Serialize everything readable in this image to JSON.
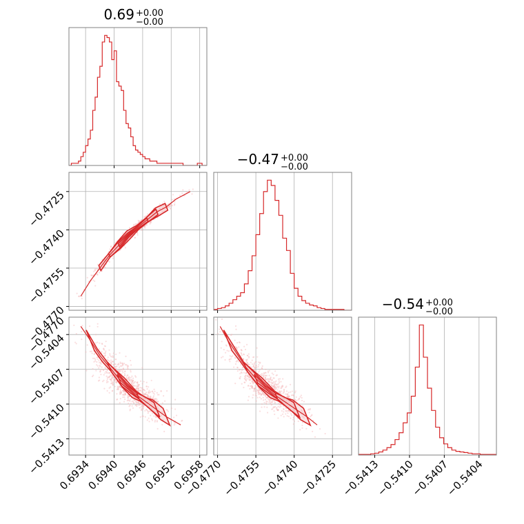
{
  "chart_data": [
    {
      "type": "histogram",
      "panel": "p0_0",
      "title": "0.69",
      "title_err_up": "+0.00",
      "title_err_down": "−0.00",
      "xlim": [
        0.69305,
        0.69595
      ],
      "xticks": [
        0.6934,
        0.694,
        0.6946,
        0.6952,
        0.6958
      ],
      "xtick_labels": [],
      "bins": [
        0.69305,
        0.6931,
        0.69315,
        0.6932,
        0.69325,
        0.6933,
        0.69335,
        0.6934,
        0.69345,
        0.6935,
        0.69355,
        0.6936,
        0.69365,
        0.6937,
        0.69375,
        0.6938,
        0.69385,
        0.6939,
        0.69395,
        0.694,
        0.69405,
        0.6941,
        0.69415,
        0.6942,
        0.69425,
        0.6943,
        0.69435,
        0.6944,
        0.69445,
        0.6945,
        0.69455,
        0.6946,
        0.69465,
        0.6947,
        0.69475,
        0.6948,
        0.69485,
        0.6949,
        0.69495,
        0.695,
        0.69505,
        0.6951,
        0.69515,
        0.6952,
        0.69525,
        0.6953,
        0.69535,
        0.6954,
        0.69545,
        0.6955,
        0.69555,
        0.6956,
        0.69565,
        0.6957,
        0.69575,
        0.6958,
        0.69585,
        0.6959,
        0.69595
      ],
      "counts": [
        0,
        1,
        1,
        1,
        2,
        4,
        6,
        9,
        12,
        16,
        25,
        31,
        40,
        45,
        56,
        59,
        58,
        56,
        48,
        52,
        38,
        36,
        34,
        25,
        19,
        17,
        13,
        9,
        7,
        6,
        5,
        4,
        3,
        3,
        2,
        2,
        2,
        1,
        1,
        1,
        1,
        1,
        1,
        1,
        1,
        1,
        1,
        1,
        0,
        0,
        0,
        0,
        0,
        0,
        1,
        1,
        0,
        0
      ]
    },
    {
      "type": "histogram",
      "panel": "p1_1",
      "title": "−0.47",
      "title_err_up": "+0.00",
      "title_err_down": "−0.00",
      "xlim": [
        -0.47715,
        -0.47175
      ],
      "xticks": [
        -0.477,
        -0.4755,
        -0.474,
        -0.4725
      ],
      "xtick_labels": [],
      "bins": [
        -0.47715,
        -0.477,
        -0.47685,
        -0.4767,
        -0.47655,
        -0.4764,
        -0.47625,
        -0.4761,
        -0.47595,
        -0.4758,
        -0.47565,
        -0.4755,
        -0.47535,
        -0.4752,
        -0.47505,
        -0.4749,
        -0.47475,
        -0.4746,
        -0.47445,
        -0.4743,
        -0.47415,
        -0.474,
        -0.47385,
        -0.4737,
        -0.47355,
        -0.4734,
        -0.47325,
        -0.4731,
        -0.47295,
        -0.4728,
        -0.47265,
        -0.4725,
        -0.47235,
        -0.4722,
        -0.47205,
        -0.4719,
        -0.47175
      ],
      "counts": [
        1,
        2,
        3,
        5,
        8,
        12,
        16,
        20,
        30,
        45,
        62,
        86,
        110,
        135,
        148,
        142,
        125,
        108,
        82,
        68,
        42,
        25,
        16,
        11,
        8,
        6,
        5,
        3,
        2,
        1,
        1,
        1,
        1,
        1,
        0,
        0
      ]
    },
    {
      "type": "histogram",
      "panel": "p2_2",
      "title": "−0.54",
      "title_err_up": "+0.00",
      "title_err_down": "−0.00",
      "xlim": [
        -0.54144,
        -0.54025
      ],
      "xticks": [
        -0.5413,
        -0.541,
        -0.5407,
        -0.5404
      ],
      "xtick_labels": [
        "−0.5413",
        "−0.5410",
        "−0.5407",
        "−0.5404"
      ],
      "bins": [
        -0.54144,
        -0.541405,
        -0.54137,
        -0.541335,
        -0.5413,
        -0.541265,
        -0.54123,
        -0.541195,
        -0.54116,
        -0.541125,
        -0.54109,
        -0.541055,
        -0.54102,
        -0.540985,
        -0.54095,
        -0.540915,
        -0.54088,
        -0.540845,
        -0.54081,
        -0.540775,
        -0.54074,
        -0.540705,
        -0.54067,
        -0.540635,
        -0.5406,
        -0.540565,
        -0.54053,
        -0.540495,
        -0.54046,
        -0.540425,
        -0.54039,
        -0.540355,
        -0.54032,
        -0.540285,
        -0.54025
      ],
      "counts": [
        1,
        1,
        1,
        2,
        3,
        5,
        8,
        12,
        17,
        25,
        36,
        52,
        68,
        95,
        142,
        210,
        158,
        108,
        72,
        45,
        28,
        18,
        12,
        8,
        6,
        5,
        4,
        3,
        2,
        2,
        1,
        1,
        1,
        1
      ]
    },
    {
      "type": "scatter",
      "panel": "p1_0",
      "x": [
        0.6933,
        0.6935,
        0.6937,
        0.6939,
        0.6941,
        0.6943,
        0.6945,
        0.6947,
        0.6949,
        0.6951,
        0.6953,
        0.6956
      ],
      "y": [
        -0.4766,
        -0.476,
        -0.4755,
        -0.475,
        -0.4746,
        -0.4742,
        -0.4739,
        -0.4736,
        -0.4733,
        -0.4731,
        -0.4728,
        -0.4725
      ],
      "xlim": [
        0.69305,
        0.69595
      ],
      "ylim": [
        -0.47715,
        -0.47175
      ],
      "xticks": [
        0.6934,
        0.694,
        0.6946,
        0.6952,
        0.6958
      ],
      "yticks": [
        -0.4725,
        -0.474,
        -0.4755,
        -0.477
      ],
      "ytick_labels": [
        "−0.4725",
        "−0.4740",
        "−0.4755",
        "−0.4770"
      ]
    },
    {
      "type": "scatter",
      "panel": "p2_0",
      "x": [
        0.6933,
        0.6935,
        0.6937,
        0.6939,
        0.6941,
        0.6943,
        0.6945,
        0.6947,
        0.6949,
        0.6951,
        0.6954
      ],
      "y": [
        -0.54033,
        -0.54045,
        -0.54058,
        -0.54068,
        -0.54078,
        -0.54086,
        -0.54093,
        -0.54099,
        -0.54105,
        -0.54111,
        -0.54118
      ],
      "xlim": [
        0.69305,
        0.69595
      ],
      "ylim": [
        -0.54144,
        -0.54025
      ],
      "xticks": [
        0.6934,
        0.694,
        0.6946,
        0.6952,
        0.6958
      ],
      "xtick_labels": [
        "0.6934",
        "0.6940",
        "0.6946",
        "0.6952",
        "0.6958"
      ],
      "yticks": [
        -0.5404,
        -0.5407,
        -0.541,
        -0.5413
      ],
      "ytick_labels": [
        "−0.5404",
        "−0.5407",
        "−0.5410",
        "−0.5413"
      ],
      "corner_label": "−0.4770"
    },
    {
      "type": "scatter",
      "panel": "p2_1",
      "x": [
        -0.4769,
        -0.4766,
        -0.4762,
        -0.4759,
        -0.4755,
        -0.4751,
        -0.4747,
        -0.4743,
        -0.4739,
        -0.4735,
        -0.4731
      ],
      "y": [
        -0.54033,
        -0.54045,
        -0.54058,
        -0.54068,
        -0.54078,
        -0.54086,
        -0.54093,
        -0.54099,
        -0.54105,
        -0.54111,
        -0.54118
      ],
      "xlim": [
        -0.47715,
        -0.47175
      ],
      "ylim": [
        -0.54144,
        -0.54025
      ],
      "xticks": [
        -0.477,
        -0.4755,
        -0.474,
        -0.4725
      ],
      "xtick_labels": [
        "−0.4770",
        "−0.4755",
        "−0.4740",
        "−0.4725"
      ],
      "yticks": [
        -0.5404,
        -0.5407,
        -0.541,
        -0.5413
      ],
      "ytick_labels": []
    }
  ],
  "colors": {
    "line": "#d62728",
    "fill": "#f3c4c5",
    "scatter": "#f4b6b8",
    "grid": "#b0b0b0",
    "frame": "#808080"
  }
}
